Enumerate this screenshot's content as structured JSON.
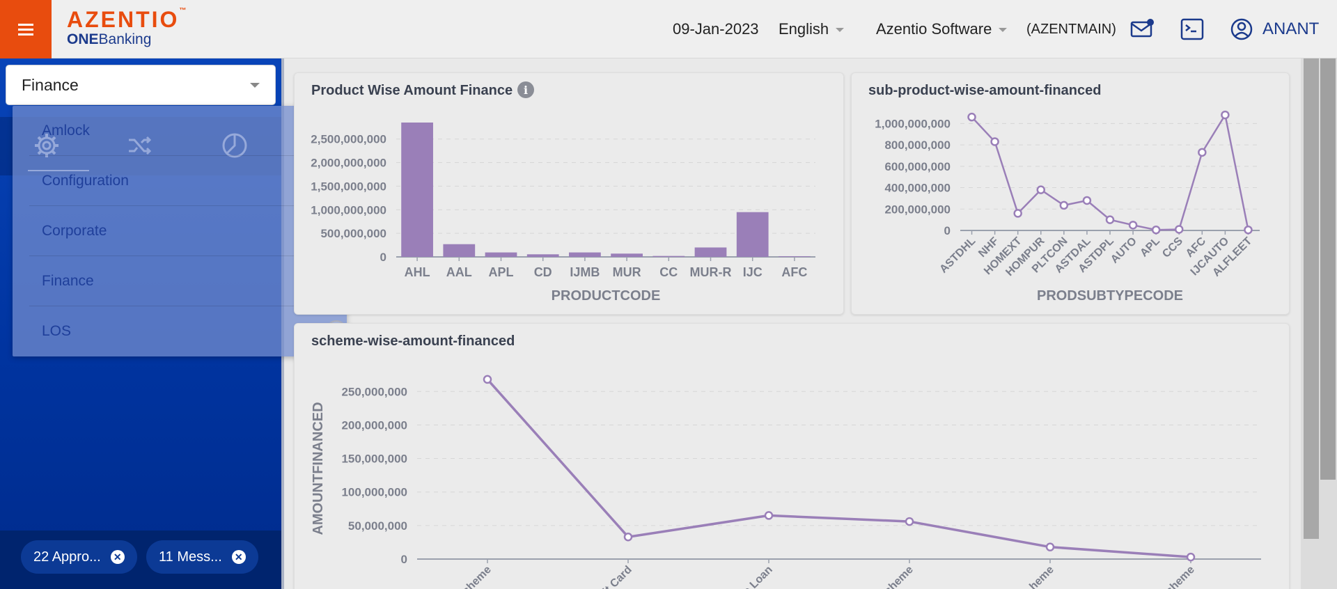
{
  "header": {
    "logo_main": "AZENTIO",
    "logo_sub_bold": "ONE",
    "logo_sub_rest": "Banking",
    "date": "09-Jan-2023",
    "language": "English",
    "company": "Azentio Software",
    "branch": "(AZENTMAIN)",
    "user": "ANANT",
    "icons": [
      "menu-icon",
      "mail-icon",
      "terminal-icon",
      "user-circle-icon"
    ]
  },
  "sidebar": {
    "module_selected": "Finance",
    "icon_bar": [
      "gear-icon",
      "shuffle-icon",
      "pie-chart-icon"
    ],
    "dropdown_items": [
      {
        "label": "Amlock",
        "selected": false
      },
      {
        "label": "Configuration",
        "selected": false
      },
      {
        "label": "Corporate",
        "selected": false
      },
      {
        "label": "Finance",
        "selected": true
      },
      {
        "label": "LOS",
        "selected": false
      }
    ],
    "notifications": [
      {
        "label": "22 Appro..."
      },
      {
        "label": "11 Mess..."
      }
    ]
  },
  "chart_data": [
    {
      "type": "bar",
      "title": "Product Wise Amount Finance",
      "xlabel": "PRODUCTCODE",
      "ylabel": "",
      "categories": [
        "AHL",
        "AAL",
        "APL",
        "CD",
        "IJMB",
        "MUR",
        "CC",
        "MUR-R",
        "IJC",
        "AFC"
      ],
      "values": [
        2850000000,
        270000000,
        95000000,
        55000000,
        95000000,
        70000000,
        20000000,
        200000000,
        950000000,
        15000000
      ],
      "yticks": [
        "0",
        "500,000,000",
        "1,000,000,000",
        "1,500,000,000",
        "2,000,000,000",
        "2,500,000,000"
      ],
      "ylim": [
        0,
        2850000000
      ],
      "color": "#9a7fb8"
    },
    {
      "type": "line",
      "title": "sub-product-wise-amount-financed",
      "xlabel": "PRODSUBTYPECODE",
      "ylabel": "",
      "categories": [
        "ASTDHL",
        "NHF",
        "HOMEXT",
        "HOMPUR",
        "PLTCON",
        "ASTDAL",
        "ASTDPL",
        "AUTO",
        "APL",
        "CCS",
        "AFC",
        "IJCAUTO",
        "ALFLEET"
      ],
      "values": [
        1060000000,
        830000000,
        160000000,
        380000000,
        235000000,
        280000000,
        100000000,
        50000000,
        5000000,
        10000000,
        730000000,
        1080000000,
        5000000
      ],
      "yticks": [
        "0",
        "200,000,000",
        "400,000,000",
        "600,000,000",
        "800,000,000",
        "1,000,000,000"
      ],
      "ylim": [
        0,
        1100000000
      ],
      "color": "#9a7fb8"
    },
    {
      "type": "line",
      "title": "scheme-wise-amount-financed",
      "xlabel": "",
      "ylabel": "AMOUNTFINANCED",
      "categories": [
        "...cheme",
        "...it Card",
        "...e Loan",
        "...cheme",
        "...heme",
        "...cheme"
      ],
      "values": [
        268000000,
        33000000,
        65000000,
        56000000,
        18000000,
        3000000
      ],
      "yticks": [
        "0",
        "50,000,000",
        "100,000,000",
        "150,000,000",
        "200,000,000",
        "250,000,000"
      ],
      "ylim": [
        0,
        270000000
      ],
      "color": "#9a7fb8"
    }
  ]
}
